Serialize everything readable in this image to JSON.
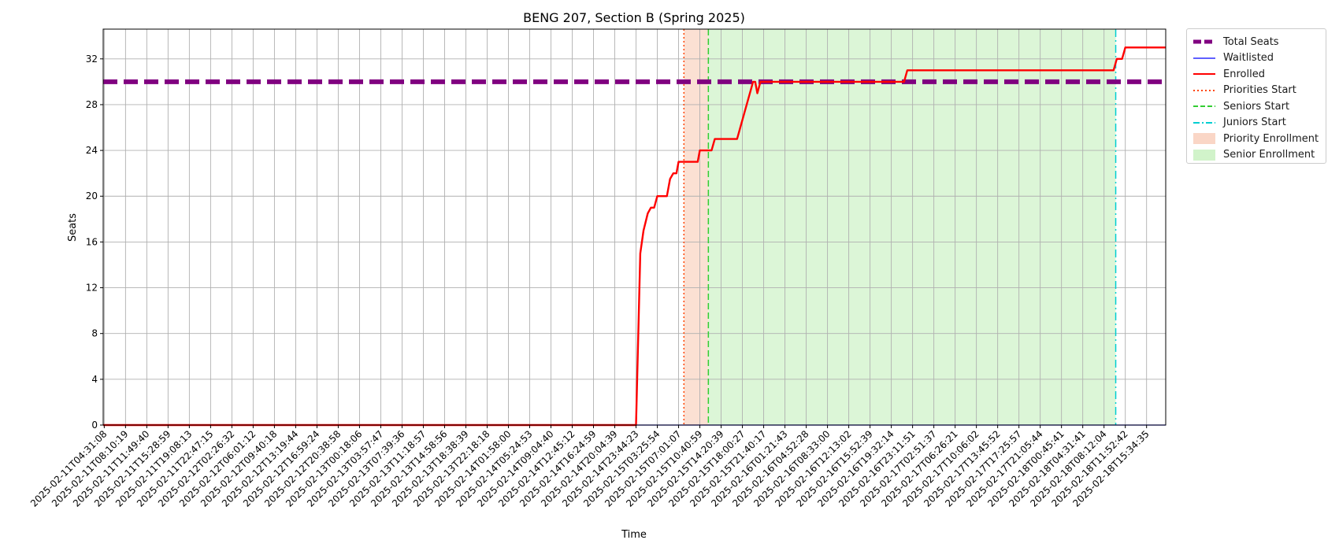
{
  "chart_data": {
    "type": "line",
    "title": "BENG 207, Section B (Spring 2025)",
    "xlabel": "Time",
    "ylabel": "Seats",
    "ylim": [
      0,
      34.6
    ],
    "yticks": [
      0,
      4,
      8,
      12,
      16,
      20,
      24,
      28,
      32
    ],
    "grid": true,
    "legend_position": "outside-top-right",
    "x_ticks": [
      "2025-02-11T04:31:08",
      "2025-02-11T08:10:19",
      "2025-02-11T11:49:40",
      "2025-02-11T15:28:59",
      "2025-02-11T19:08:13",
      "2025-02-11T22:47:15",
      "2025-02-12T02:26:32",
      "2025-02-12T06:01:12",
      "2025-02-12T09:40:18",
      "2025-02-12T13:19:44",
      "2025-02-12T16:59:24",
      "2025-02-12T20:38:58",
      "2025-02-13T00:18:06",
      "2025-02-13T03:57:47",
      "2025-02-13T07:39:36",
      "2025-02-13T11:18:57",
      "2025-02-13T14:58:56",
      "2025-02-13T18:38:39",
      "2025-02-13T22:18:18",
      "2025-02-14T01:58:00",
      "2025-02-14T05:24:53",
      "2025-02-14T09:04:40",
      "2025-02-14T12:45:12",
      "2025-02-14T16:24:59",
      "2025-02-14T20:04:39",
      "2025-02-14T23:44:23",
      "2025-02-15T03:25:54",
      "2025-02-15T07:01:07",
      "2025-02-15T10:40:59",
      "2025-02-15T14:20:39",
      "2025-02-15T18:00:27",
      "2025-02-15T21:40:17",
      "2025-02-16T01:21:43",
      "2025-02-16T04:52:28",
      "2025-02-16T08:33:00",
      "2025-02-16T12:13:02",
      "2025-02-16T15:52:39",
      "2025-02-16T19:32:14",
      "2025-02-16T23:11:51",
      "2025-02-17T02:51:37",
      "2025-02-17T06:26:21",
      "2025-02-17T10:06:02",
      "2025-02-17T13:45:52",
      "2025-02-17T17:25:57",
      "2025-02-17T21:05:44",
      "2025-02-18T00:45:41",
      "2025-02-18T04:31:41",
      "2025-02-18T08:12:04",
      "2025-02-18T11:52:42",
      "2025-02-18T15:34:35"
    ],
    "x_extent": [
      -0.05,
      49.9
    ],
    "series": [
      {
        "name": "Total Seats",
        "color": "#800080",
        "style": "dashed-thick",
        "points": [
          [
            -0.05,
            30
          ],
          [
            49.9,
            30
          ]
        ]
      },
      {
        "name": "Waitlisted",
        "color": "#0000ff",
        "style": "solid-thin",
        "points": [
          [
            -0.05,
            0
          ],
          [
            49.9,
            0
          ]
        ]
      },
      {
        "name": "Enrolled",
        "color": "#ff0000",
        "style": "solid",
        "points": [
          [
            -0.05,
            0
          ],
          [
            25.0,
            0
          ],
          [
            25.2,
            15
          ],
          [
            25.35,
            17
          ],
          [
            25.55,
            18.5
          ],
          [
            25.7,
            19
          ],
          [
            25.85,
            19
          ],
          [
            26.0,
            20
          ],
          [
            26.15,
            20
          ],
          [
            26.45,
            20
          ],
          [
            26.6,
            21.5
          ],
          [
            26.75,
            22
          ],
          [
            26.9,
            22
          ],
          [
            27.0,
            23
          ],
          [
            27.15,
            23
          ],
          [
            27.9,
            23
          ],
          [
            28.0,
            24
          ],
          [
            28.25,
            24
          ],
          [
            28.55,
            24
          ],
          [
            28.7,
            25
          ],
          [
            29.0,
            25
          ],
          [
            29.75,
            25
          ],
          [
            30.5,
            30
          ],
          [
            30.6,
            30
          ],
          [
            30.7,
            29
          ],
          [
            30.85,
            30
          ],
          [
            31.2,
            30
          ],
          [
            37.6,
            30
          ],
          [
            37.75,
            31
          ],
          [
            38.0,
            31
          ],
          [
            47.45,
            31
          ],
          [
            47.6,
            32
          ],
          [
            47.85,
            32
          ],
          [
            48.0,
            33
          ],
          [
            49.9,
            33
          ]
        ]
      }
    ],
    "vertical_lines": [
      {
        "name": "Priorities Start",
        "x": 27.25,
        "color": "#ff4500",
        "style": "dotted"
      },
      {
        "name": "Seniors Start",
        "x": 28.4,
        "color": "#32cd32",
        "style": "dashed"
      },
      {
        "name": "Juniors Start",
        "x": 47.55,
        "color": "#00ced1",
        "style": "dashdot"
      }
    ],
    "shaded_regions": [
      {
        "name": "Priority Enrollment",
        "from": 27.25,
        "to": 28.4,
        "color": "#f4a582"
      },
      {
        "name": "Senior Enrollment",
        "from": 28.4,
        "to": 47.55,
        "color": "#9be58c"
      }
    ]
  },
  "legend": {
    "items": [
      {
        "label": "Total Seats",
        "color": "#800080",
        "kind": "line-dashed-thick"
      },
      {
        "label": "Waitlisted",
        "color": "#0000ff",
        "kind": "line-thin"
      },
      {
        "label": "Enrolled",
        "color": "#ff0000",
        "kind": "line"
      },
      {
        "label": "Priorities Start",
        "color": "#ff4500",
        "kind": "line-dotted"
      },
      {
        "label": "Seniors Start",
        "color": "#32cd32",
        "kind": "line-dashed"
      },
      {
        "label": "Juniors Start",
        "color": "#00ced1",
        "kind": "line-dashdot"
      },
      {
        "label": "Priority Enrollment",
        "color": "#f4a582",
        "kind": "patch"
      },
      {
        "label": "Senior Enrollment",
        "color": "#9be58c",
        "kind": "patch"
      }
    ]
  }
}
